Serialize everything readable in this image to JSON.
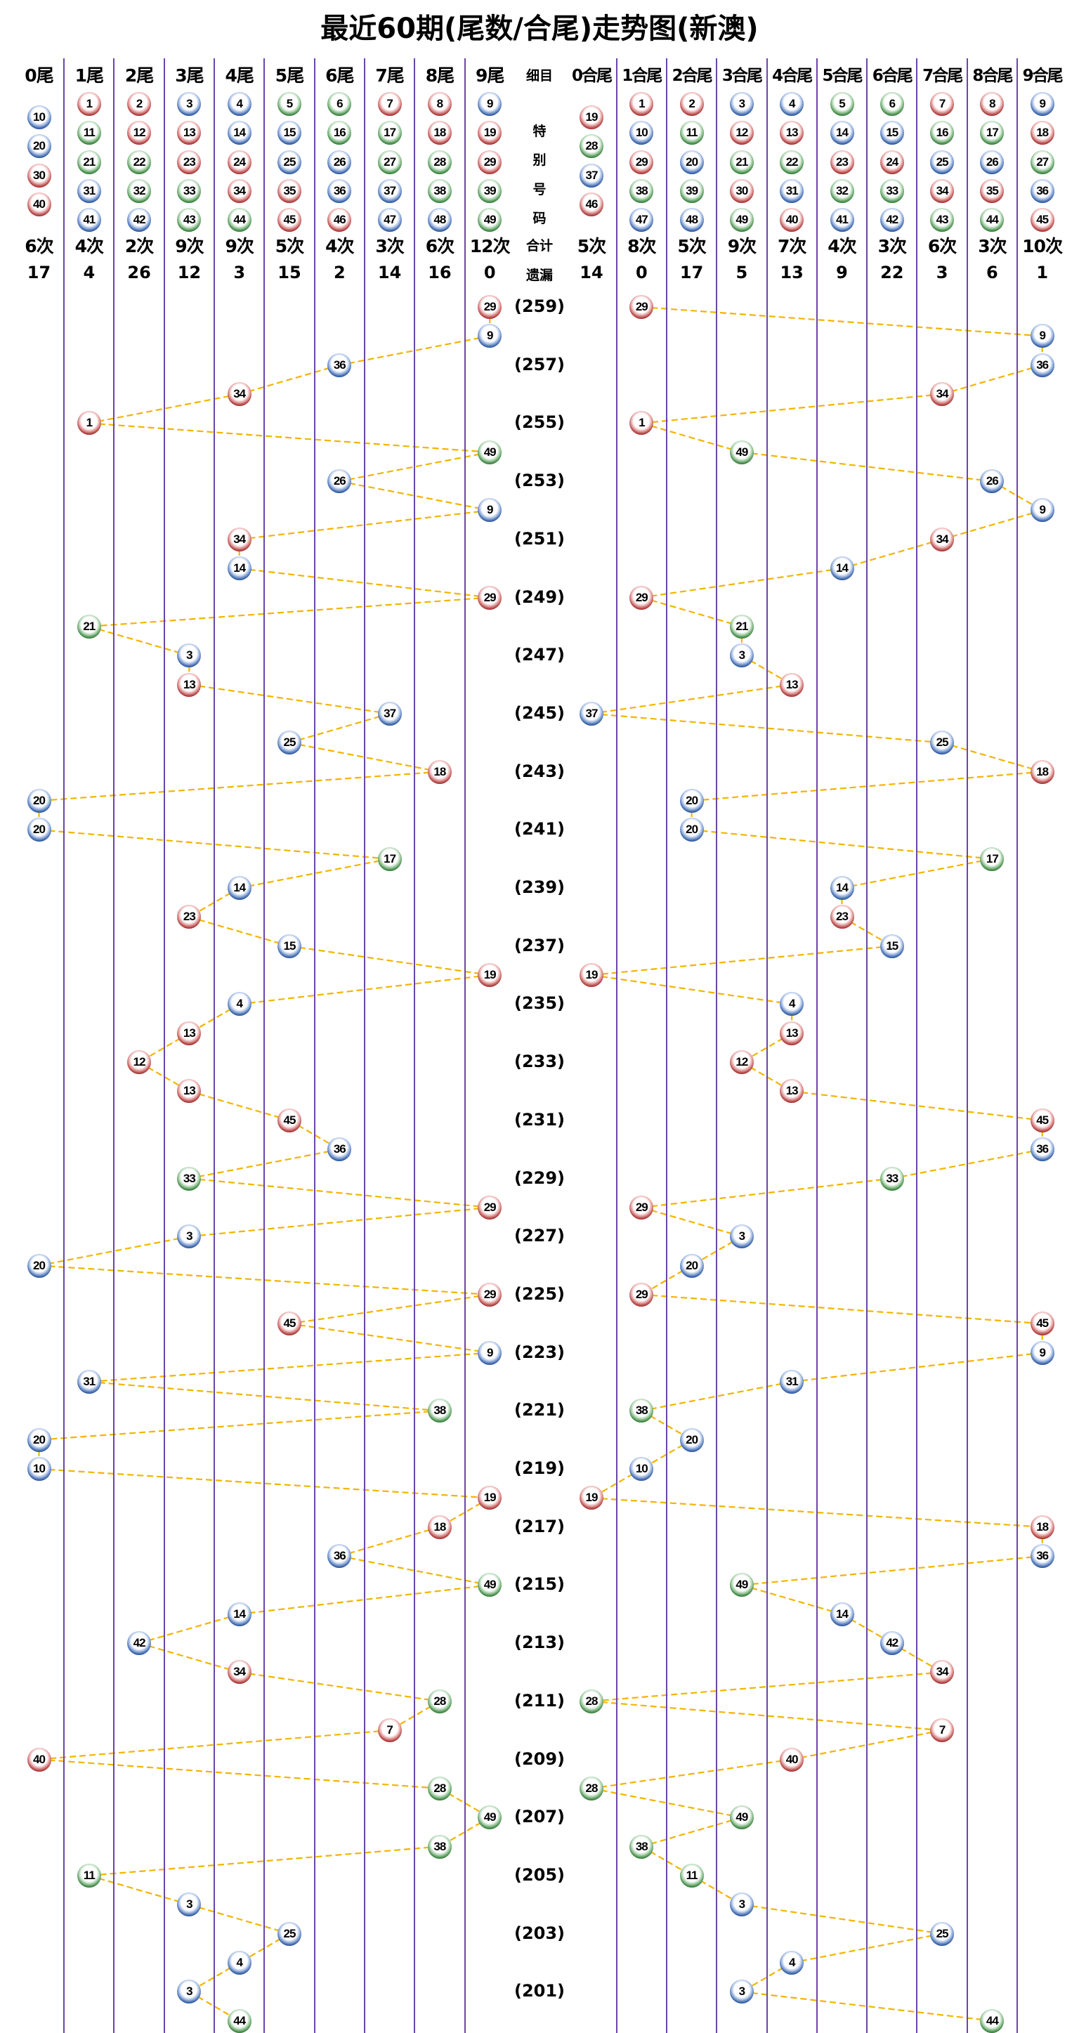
{
  "title": "最近60期(尾数/合尾)走势图(新澳)",
  "left_headers": [
    "0尾",
    "1尾",
    "2尾",
    "3尾",
    "4尾",
    "5尾",
    "6尾",
    "7尾",
    "8尾",
    "9尾"
  ],
  "right_headers": [
    "0合尾",
    "1合尾",
    "2合尾",
    "3合尾",
    "4合尾",
    "5合尾",
    "6合尾",
    "7合尾",
    "8合尾",
    "9合尾"
  ],
  "middle_labels": {
    "detail": "细目",
    "special": [
      "特",
      "别",
      "号",
      "码"
    ],
    "total": "合计",
    "missing": "遗漏"
  },
  "left_legend": [
    [
      10,
      20,
      30,
      40
    ],
    [
      1,
      11,
      21,
      31,
      41
    ],
    [
      2,
      12,
      22,
      32,
      42
    ],
    [
      3,
      13,
      23,
      33,
      43
    ],
    [
      4,
      14,
      24,
      34,
      44
    ],
    [
      5,
      15,
      25,
      35,
      45
    ],
    [
      6,
      16,
      26,
      36,
      46
    ],
    [
      7,
      17,
      27,
      37,
      47
    ],
    [
      8,
      18,
      28,
      38,
      48
    ],
    [
      9,
      19,
      29,
      39,
      49
    ]
  ],
  "right_legend": [
    [
      19,
      28,
      37,
      46
    ],
    [
      1,
      10,
      29,
      38,
      47
    ],
    [
      2,
      11,
      20,
      39,
      48
    ],
    [
      3,
      12,
      21,
      30,
      49
    ],
    [
      4,
      13,
      22,
      31,
      40
    ],
    [
      5,
      14,
      23,
      32,
      41
    ],
    [
      6,
      15,
      24,
      33,
      42
    ],
    [
      7,
      16,
      25,
      34,
      43
    ],
    [
      8,
      17,
      26,
      35,
      44
    ],
    [
      9,
      18,
      27,
      36,
      45
    ]
  ],
  "left_counts": [
    "6次",
    "4次",
    "2次",
    "9次",
    "9次",
    "5次",
    "4次",
    "3次",
    "6次",
    "12次"
  ],
  "left_missing": [
    "17",
    "4",
    "26",
    "12",
    "3",
    "15",
    "2",
    "14",
    "16",
    "0"
  ],
  "right_counts": [
    "5次",
    "8次",
    "5次",
    "9次",
    "7次",
    "4次",
    "3次",
    "6次",
    "3次",
    "10次"
  ],
  "right_missing": [
    "14",
    "0",
    "17",
    "5",
    "13",
    "9",
    "22",
    "3",
    "6",
    "1"
  ],
  "colors": {
    "red": "#d42a2a",
    "blue": "#2160c8",
    "green": "#2f9a35",
    "grid": "#6b45a8",
    "link": "#f2b400"
  },
  "ball_colors": {
    "red": [
      1,
      2,
      7,
      8,
      12,
      13,
      18,
      19,
      23,
      24,
      29,
      30,
      34,
      35,
      40,
      45,
      46
    ],
    "blue": [
      3,
      4,
      9,
      10,
      14,
      15,
      20,
      25,
      26,
      31,
      36,
      37,
      41,
      42,
      47,
      48
    ],
    "green": [
      5,
      6,
      11,
      16,
      17,
      21,
      22,
      27,
      28,
      32,
      33,
      38,
      39,
      43,
      44,
      49
    ]
  },
  "chart_data": {
    "type": "scatter",
    "title": "最近60期(尾数/合尾)走势图(新澳)",
    "x_axis": "tail / digit-sum tail (0-9)",
    "y_axis": "period",
    "periods": [
      {
        "period": 259,
        "number": 29
      },
      {
        "period": 258,
        "number": 9
      },
      {
        "period": 257,
        "number": 36
      },
      {
        "period": 256,
        "number": 34
      },
      {
        "period": 255,
        "number": 1
      },
      {
        "period": 254,
        "number": 49
      },
      {
        "period": 253,
        "number": 26
      },
      {
        "period": 252,
        "number": 9
      },
      {
        "period": 251,
        "number": 34
      },
      {
        "period": 250,
        "number": 14
      },
      {
        "period": 249,
        "number": 29
      },
      {
        "period": 248,
        "number": 21
      },
      {
        "period": 247,
        "number": 3
      },
      {
        "period": 246,
        "number": 13
      },
      {
        "period": 245,
        "number": 37
      },
      {
        "period": 244,
        "number": 25
      },
      {
        "period": 243,
        "number": 18
      },
      {
        "period": 242,
        "number": 20
      },
      {
        "period": 241,
        "number": 20
      },
      {
        "period": 240,
        "number": 17
      },
      {
        "period": 239,
        "number": 14
      },
      {
        "period": 238,
        "number": 23
      },
      {
        "period": 237,
        "number": 15
      },
      {
        "period": 236,
        "number": 19
      },
      {
        "period": 235,
        "number": 4
      },
      {
        "period": 234,
        "number": 13
      },
      {
        "period": 233,
        "number": 12
      },
      {
        "period": 232,
        "number": 13
      },
      {
        "period": 231,
        "number": 45
      },
      {
        "period": 230,
        "number": 36
      },
      {
        "period": 229,
        "number": 33
      },
      {
        "period": 228,
        "number": 29
      },
      {
        "period": 227,
        "number": 3
      },
      {
        "period": 226,
        "number": 20
      },
      {
        "period": 225,
        "number": 29
      },
      {
        "period": 224,
        "number": 45
      },
      {
        "period": 223,
        "number": 9
      },
      {
        "period": 222,
        "number": 31
      },
      {
        "period": 221,
        "number": 38
      },
      {
        "period": 220,
        "number": 20
      },
      {
        "period": 219,
        "number": 10
      },
      {
        "period": 218,
        "number": 19
      },
      {
        "period": 217,
        "number": 18
      },
      {
        "period": 216,
        "number": 36
      },
      {
        "period": 215,
        "number": 49
      },
      {
        "period": 214,
        "number": 14
      },
      {
        "period": 213,
        "number": 42
      },
      {
        "period": 212,
        "number": 34
      },
      {
        "period": 211,
        "number": 28
      },
      {
        "period": 210,
        "number": 7
      },
      {
        "period": 209,
        "number": 40
      },
      {
        "period": 208,
        "number": 28
      },
      {
        "period": 207,
        "number": 49
      },
      {
        "period": 206,
        "number": 38
      },
      {
        "period": 205,
        "number": 11
      },
      {
        "period": 204,
        "number": 3
      },
      {
        "period": 203,
        "number": 25
      },
      {
        "period": 202,
        "number": 4
      },
      {
        "period": 201,
        "number": 3
      },
      {
        "period": 200,
        "number": 44
      }
    ]
  }
}
